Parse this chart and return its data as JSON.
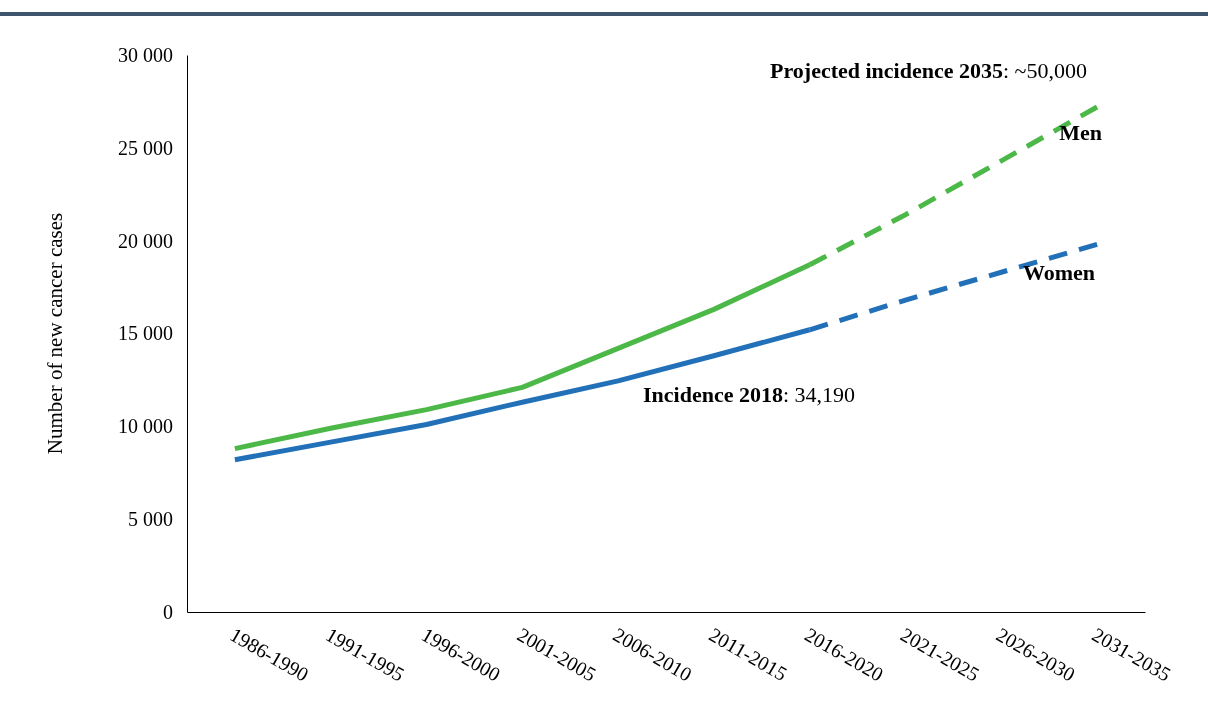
{
  "chart_data": {
    "type": "line",
    "ylabel": "Number of new cancer cases",
    "categories": [
      "1986-1990",
      "1991-1995",
      "1996-2000",
      "2001-2005",
      "2006-2010",
      "2011-2015",
      "2016-2020",
      "2021-2025",
      "2026-2030",
      "2031-2035"
    ],
    "series": [
      {
        "color": "#4cb848",
        "line_style": "solid",
        "values": [
          8800,
          9900,
          10900,
          12100,
          14200,
          16300,
          18700,
          null,
          null,
          null
        ]
      },
      {
        "name": "Men",
        "color": "#4cb848",
        "line_style": "dashed",
        "values": [
          null,
          null,
          null,
          null,
          null,
          null,
          18700,
          21400,
          24300,
          27200
        ]
      },
      {
        "color": "#2270b8",
        "line_style": "solid",
        "values": [
          8200,
          9150,
          10100,
          11300,
          12450,
          13800,
          15200,
          null,
          null,
          null
        ]
      },
      {
        "name": "Women",
        "color": "#2270b8",
        "line_style": "dashed",
        "values": [
          null,
          null,
          null,
          null,
          null,
          null,
          15200,
          16800,
          18300,
          19800
        ]
      }
    ],
    "ylim": [
      0,
      30000
    ],
    "yticks": [
      {
        "value": 0,
        "label": "0"
      },
      {
        "value": 5000,
        "label": "5 000"
      },
      {
        "value": 10000,
        "label": "10 000"
      },
      {
        "value": 15000,
        "label": "15 000"
      },
      {
        "value": 20000,
        "label": "20 000"
      },
      {
        "value": 25000,
        "label": "25 000"
      },
      {
        "value": 30000,
        "label": "30 000"
      }
    ],
    "annotations": [
      "Projected incidence 2035: ~50,000",
      "Incidence 2018: 34,190"
    ],
    "grid": false,
    "legend": false,
    "marker": "none"
  }
}
